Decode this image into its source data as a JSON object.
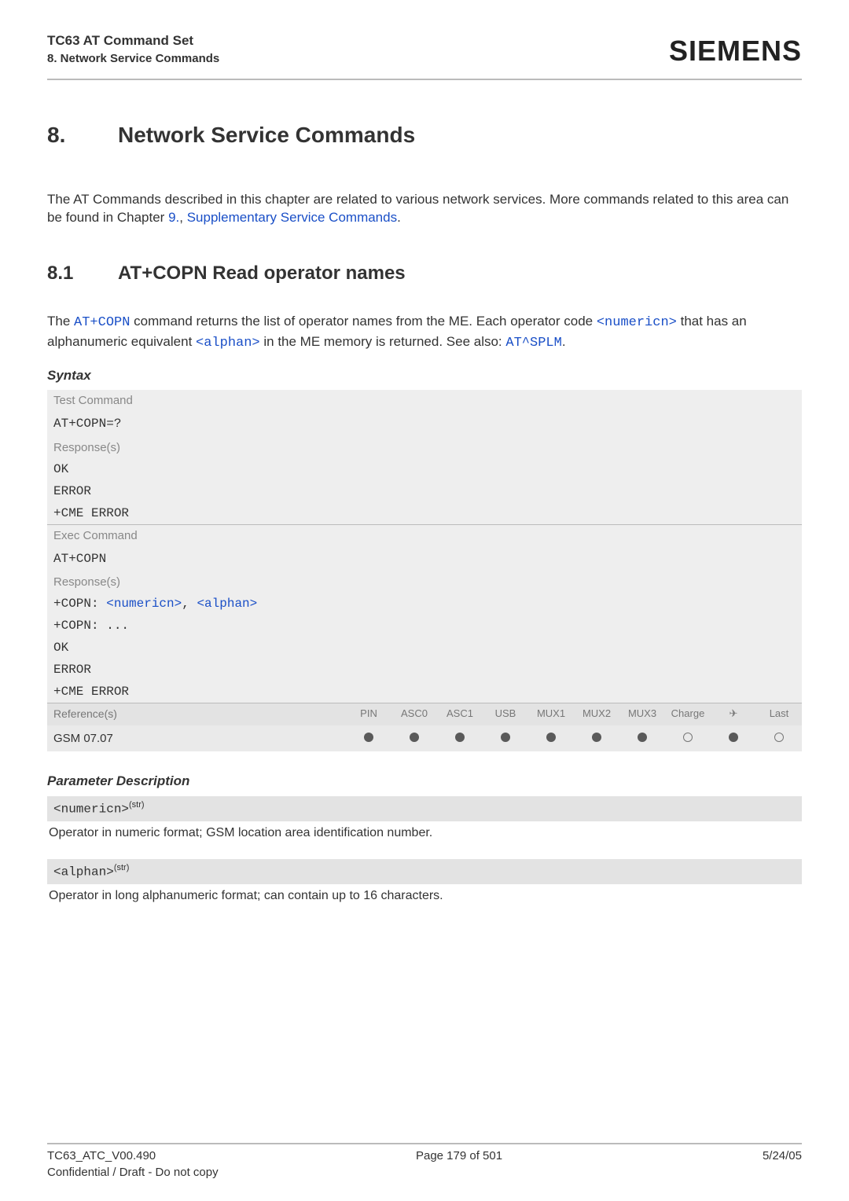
{
  "header": {
    "doc_title": "TC63 AT Command Set",
    "doc_section": "8. Network Service Commands",
    "logo_text": "SIEMENS"
  },
  "chapter": {
    "number": "8.",
    "title": "Network Service Commands",
    "intro_pre": "The AT Commands described in this chapter are related to various network services. More commands related to this area can be found in Chapter ",
    "intro_link1": "9.",
    "intro_mid": ", ",
    "intro_link2": "Supplementary Service Commands",
    "intro_post": "."
  },
  "subsection": {
    "number": "8.1",
    "title": "AT+COPN   Read operator names",
    "desc_pre": "The ",
    "desc_cmd": "AT+COPN",
    "desc_mid1": " command returns the list of operator names from the ME. Each operator code ",
    "desc_param1": "<numericn>",
    "desc_mid2": " that has an alphanumeric equivalent ",
    "desc_param2": "<alphan>",
    "desc_mid3": " in the ME memory is returned. See also: ",
    "desc_cmd2": "AT^SPLM",
    "desc_post": "."
  },
  "syntax": {
    "heading": "Syntax",
    "test_label": "Test Command",
    "test_cmd": "AT+COPN=?",
    "test_resp_label": "Response(s)",
    "test_resp_lines": [
      "OK",
      "ERROR",
      "+CME ERROR"
    ],
    "exec_label": "Exec Command",
    "exec_cmd": "AT+COPN",
    "exec_resp_label": "Response(s)",
    "exec_resp_l1a": "+COPN: ",
    "exec_resp_l1b": "<numericn>",
    "exec_resp_l1c": ", ",
    "exec_resp_l1d": "<alphan>",
    "exec_resp_l2": "+COPN: ...",
    "exec_resp_l3": "OK",
    "exec_resp_l4": "ERROR",
    "exec_resp_l5": "+CME ERROR"
  },
  "reference": {
    "label": "Reference(s)",
    "columns": [
      "PIN",
      "ASC0",
      "ASC1",
      "USB",
      "MUX1",
      "MUX2",
      "MUX3",
      "Charge",
      "✈",
      "Last"
    ],
    "row_name": "GSM 07.07",
    "row_values": [
      "filled",
      "filled",
      "filled",
      "filled",
      "filled",
      "filled",
      "filled",
      "empty",
      "filled",
      "empty"
    ]
  },
  "params": {
    "heading": "Parameter Description",
    "p1_tag": "<numericn>",
    "p1_sup": "(str)",
    "p1_desc": "Operator in numeric format; GSM location area identification number.",
    "p2_tag": "<alphan>",
    "p2_sup": "(str)",
    "p2_desc": "Operator in long alphanumeric format; can contain up to 16 characters."
  },
  "footer": {
    "left": "TC63_ATC_V00.490",
    "center": "Page 179 of 501",
    "right": "5/24/05",
    "left2": "Confidential / Draft - Do not copy"
  },
  "colors": {
    "link": "#1a4fc7",
    "gray_bg": "#eeeeee",
    "gray_bg2": "#e3e3e3",
    "hr": "#bbbbbb",
    "dot": "#5a5a5a"
  }
}
